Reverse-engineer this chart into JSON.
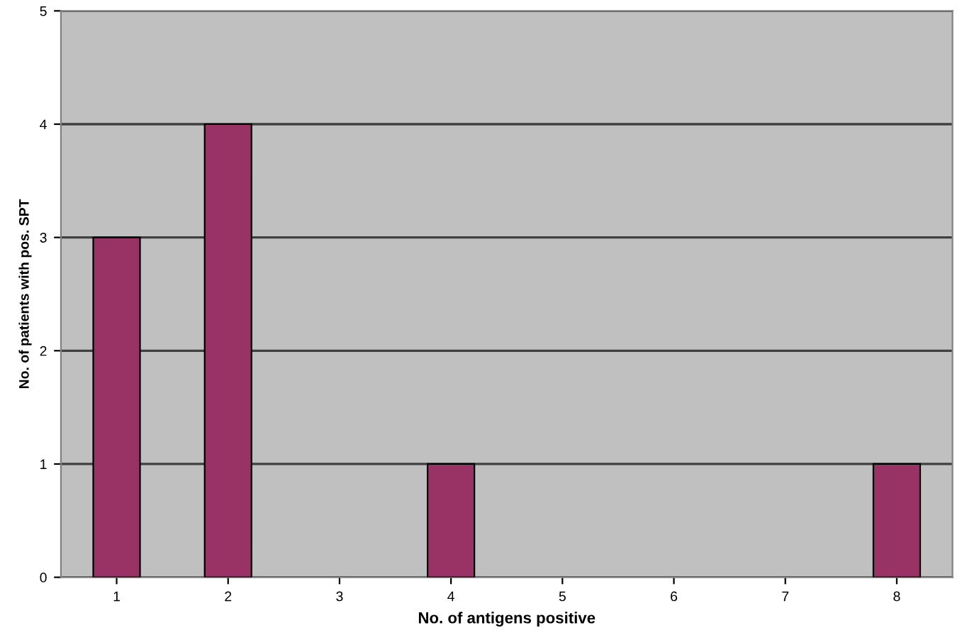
{
  "chart_data": {
    "type": "bar",
    "xlabel": "No. of antigens positive",
    "ylabel": "No. of patients with pos. SPT",
    "categories": [
      "1",
      "2",
      "3",
      "4",
      "5",
      "6",
      "7",
      "8"
    ],
    "values": [
      3,
      4,
      0,
      1,
      0,
      0,
      0,
      1
    ],
    "color": "#993366",
    "ylim": [
      0,
      5
    ],
    "yticks": [
      0,
      1,
      2,
      3,
      4,
      5
    ],
    "grid": "y"
  }
}
